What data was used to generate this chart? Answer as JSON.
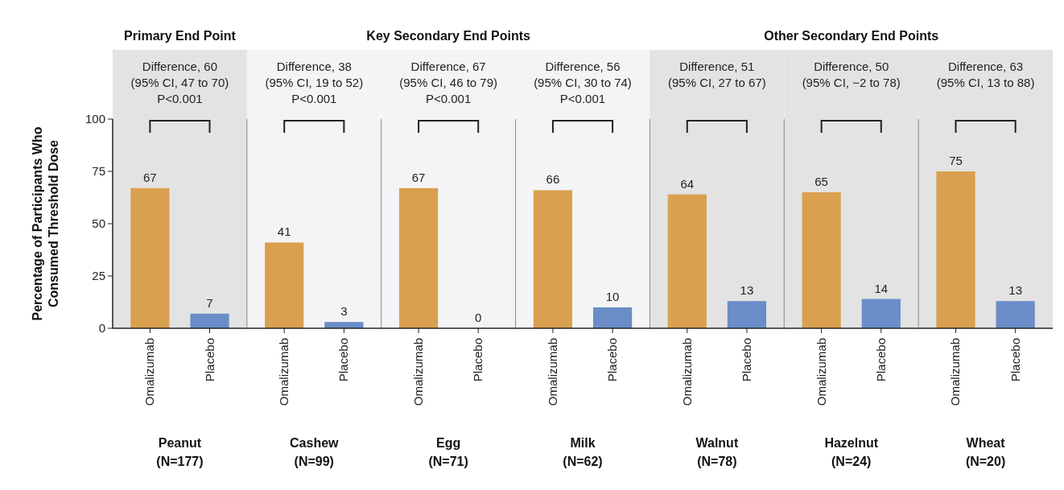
{
  "chart_data": [
    {
      "type": "bar",
      "title": "Primary End Point",
      "ylabel": "Percentage of Participants Who\nConsumed Threshold Dose",
      "xlabel": "Peanut\n(N=177)",
      "categories": [
        "Omalizumab",
        "Placebo"
      ],
      "values": [
        67,
        7
      ],
      "colors": [
        "#d9a04f",
        "#6a8dc8"
      ],
      "ylim": [
        0,
        100
      ],
      "yticks": [
        0,
        25,
        50,
        75,
        100
      ],
      "data_labels": true,
      "annotations": [
        "Difference, 60\n(95% CI, 47 to 70)\nP<0.001"
      ]
    },
    {
      "type": "bar",
      "xlabel": "Cashew\n(N=99)",
      "categories": [
        "Omalizumab",
        "Placebo"
      ],
      "values": [
        41,
        3
      ],
      "colors": [
        "#d9a04f",
        "#6a8dc8"
      ],
      "ylim": [
        0,
        100
      ],
      "tick_labels": "x",
      "data_labels": true,
      "annotations": [
        "Difference, 38\n(95% CI, 19 to 52)\nP<0.001"
      ]
    },
    {
      "type": "bar",
      "title": "Key Secondary End Points",
      "xlabel": "Egg\n(N=71)",
      "categories": [
        "Omalizumab",
        "Placebo"
      ],
      "values": [
        67,
        0
      ],
      "colors": [
        "#d9a04f",
        "#6a8dc8"
      ],
      "ylim": [
        0,
        100
      ],
      "tick_labels": "x",
      "data_labels": true,
      "annotations": [
        "Difference, 67\n(95% CI, 46 to 79)\nP<0.001"
      ]
    },
    {
      "type": "bar",
      "xlabel": "Milk\n(N=62)",
      "categories": [
        "Omalizumab",
        "Placebo"
      ],
      "values": [
        66,
        10
      ],
      "colors": [
        "#d9a04f",
        "#6a8dc8"
      ],
      "ylim": [
        0,
        100
      ],
      "tick_labels": "x",
      "data_labels": true,
      "annotations": [
        "Difference, 56\n(95% CI, 30 to 74)\nP<0.001"
      ]
    },
    {
      "type": "bar",
      "xlabel": "Walnut\n(N=78)",
      "categories": [
        "Omalizumab",
        "Placebo"
      ],
      "values": [
        64,
        13
      ],
      "colors": [
        "#d9a04f",
        "#6a8dc8"
      ],
      "ylim": [
        0,
        100
      ],
      "tick_labels": "x",
      "data_labels": true,
      "annotations": [
        "Difference, 51\n(95% CI, 27 to 67)"
      ]
    },
    {
      "type": "bar",
      "title": "Other Secondary End Points",
      "xlabel": "Hazelnut\n(N=24)",
      "categories": [
        "Omalizumab",
        "Placebo"
      ],
      "values": [
        65,
        14
      ],
      "colors": [
        "#d9a04f",
        "#6a8dc8"
      ],
      "ylim": [
        0,
        100
      ],
      "tick_labels": "x",
      "data_labels": true,
      "annotations": [
        "Difference, 50\n(95% CI, −2 to 78)"
      ]
    },
    {
      "type": "bar",
      "xlabel": "Wheat\n(N=20)",
      "categories": [
        "Omalizumab",
        "Placebo"
      ],
      "values": [
        75,
        13
      ],
      "colors": [
        "#d9a04f",
        "#6a8dc8"
      ],
      "ylim": [
        0,
        100
      ],
      "tick_labels": "x",
      "data_labels": true,
      "annotations": [
        "Difference, 63\n(95% CI, 13 to 88)"
      ]
    }
  ]
}
